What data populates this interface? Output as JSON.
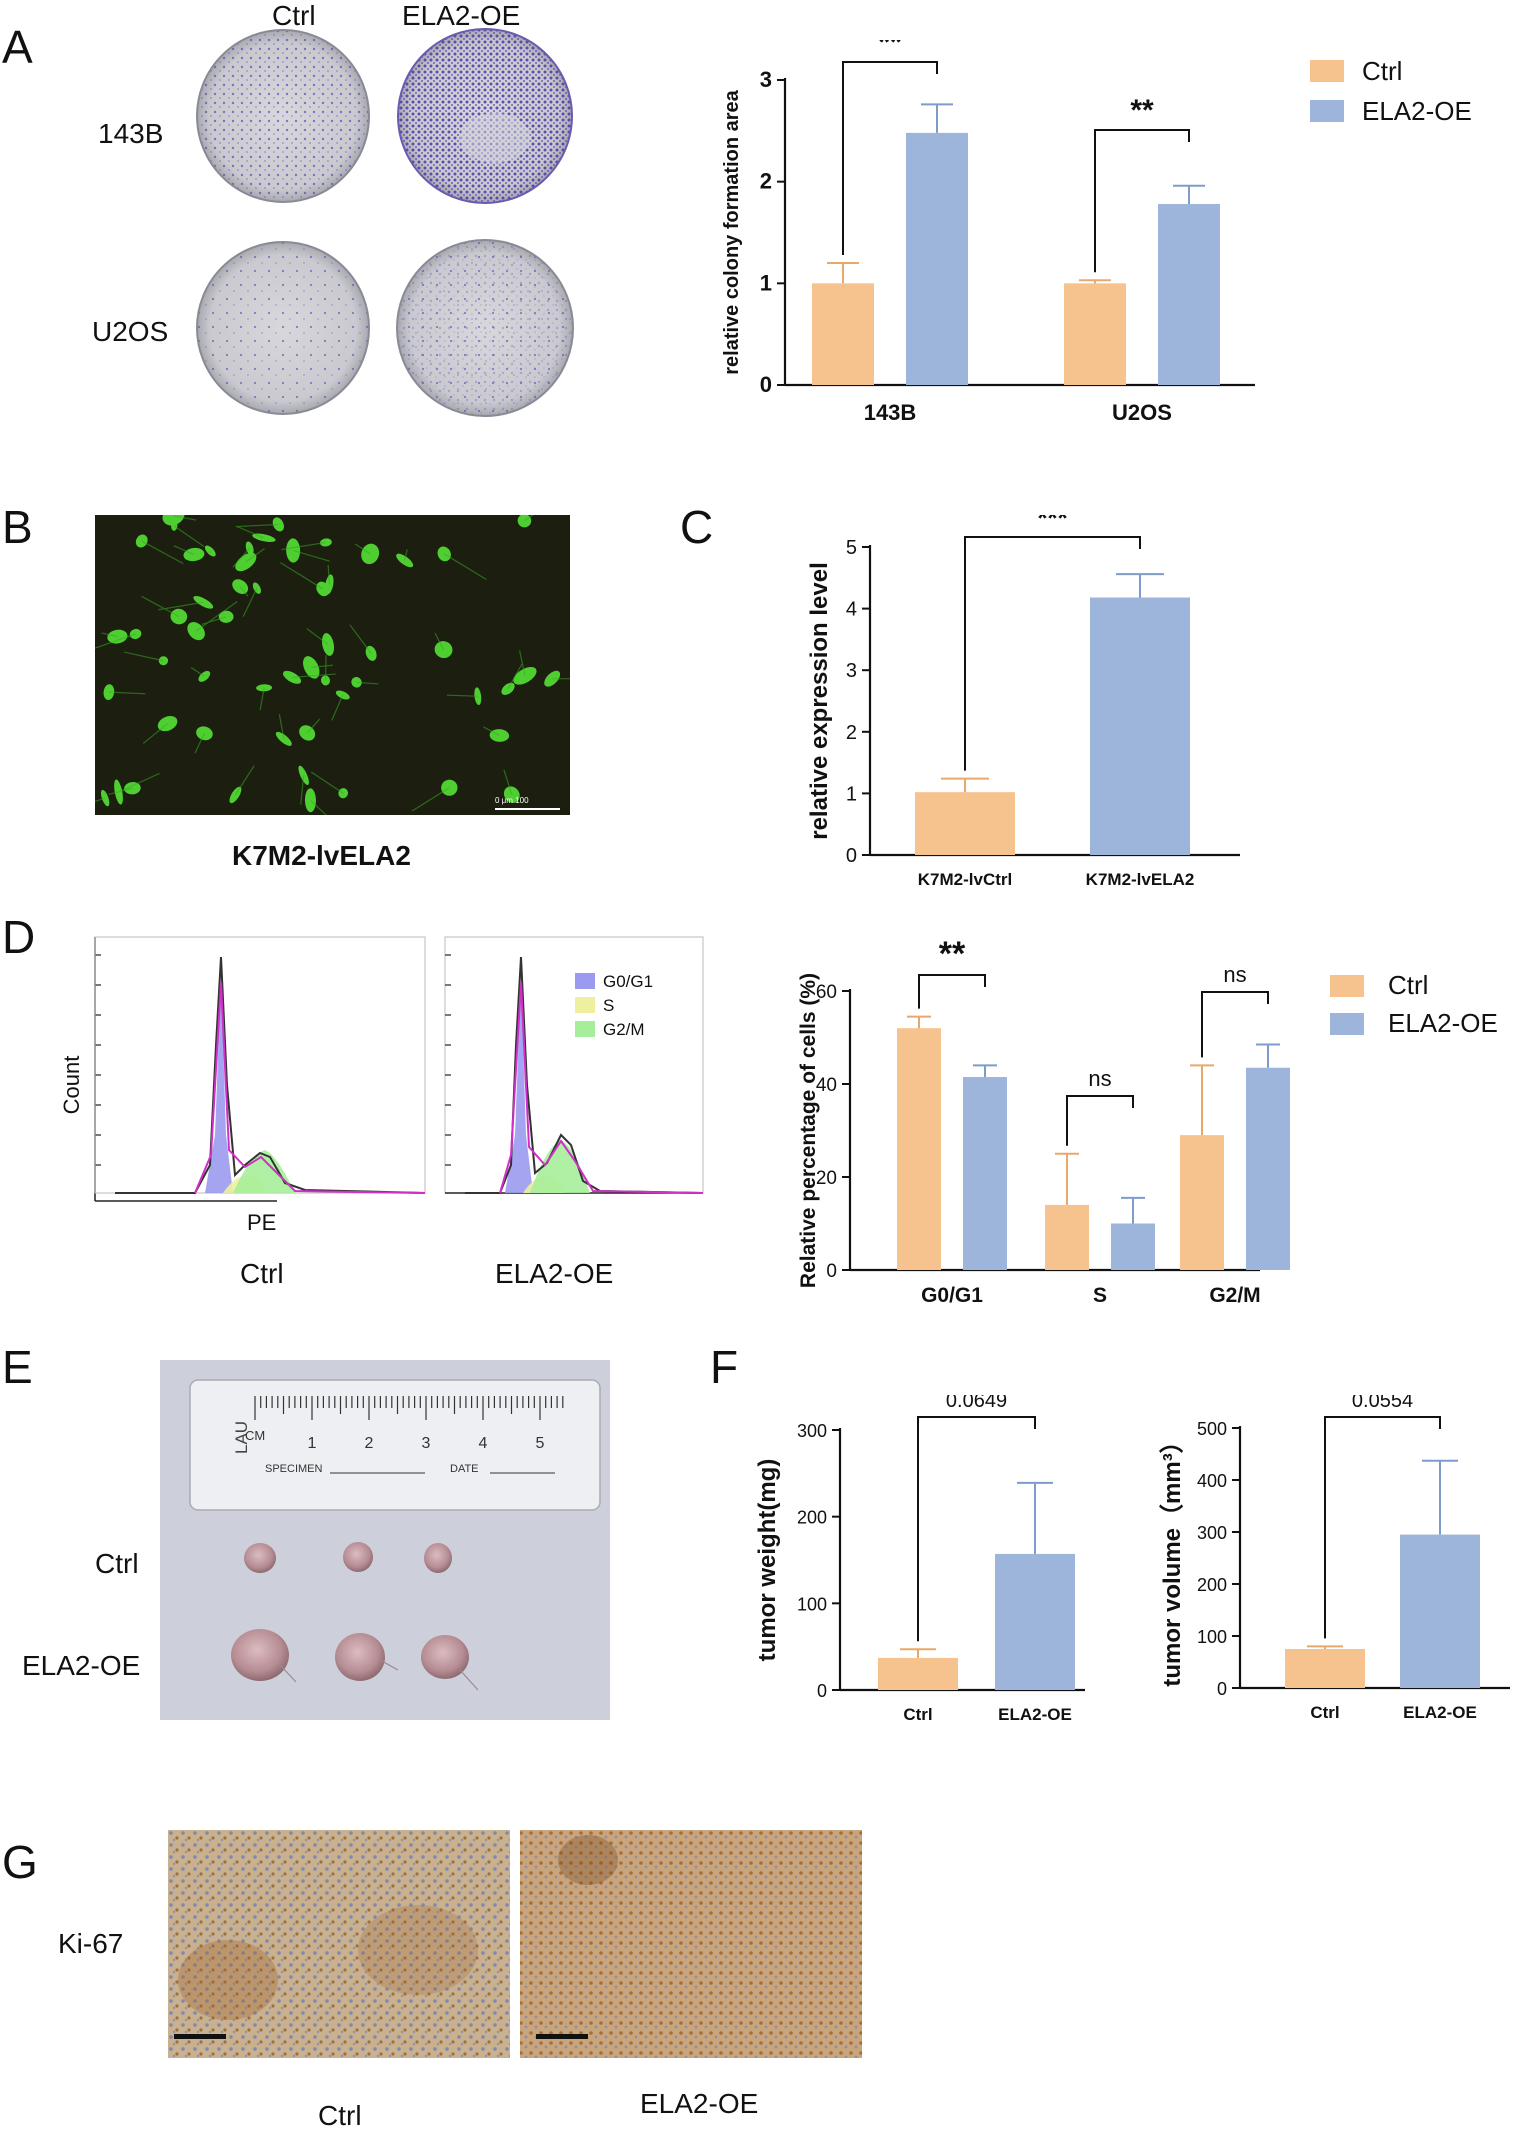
{
  "panels": {
    "A": {
      "label": "A",
      "col_headers": [
        "Ctrl",
        "ELA2-OE"
      ],
      "row_labels": [
        "143B",
        "U2OS"
      ]
    },
    "B": {
      "label": "B",
      "caption": "K7M2-lvELA2",
      "scalebar_text": "0    μm    100"
    },
    "C": {
      "label": "C"
    },
    "D": {
      "label": "D",
      "flow_legend": [
        "G0/G1",
        "S",
        "G2/M"
      ],
      "flow_ylabel": "Count",
      "flow_xlabel": "PE",
      "flow_captions": [
        "Ctrl",
        "ELA2-OE"
      ]
    },
    "E": {
      "label": "E",
      "row_labels": [
        "Ctrl",
        "ELA2-OE"
      ],
      "ruler_numbers": [
        "1",
        "2",
        "3",
        "4",
        "5"
      ],
      "ruler_text": {
        "logo": "LAU",
        "cm": "CM",
        "specimen": "SPECIMEN",
        "date": "DATE"
      }
    },
    "F": {
      "label": "F"
    },
    "G": {
      "label": "G",
      "row_label": "Ki-67",
      "captions": [
        "Ctrl",
        "ELA2-OE"
      ]
    }
  },
  "colors": {
    "ctrl": "#F6C28E",
    "ctrl_edge": "#E8A86A",
    "ela2": "#9DB5DA",
    "ela2_edge": "#7E9BCB",
    "g0g1": "#9A9AF0",
    "s": "#EFEFA0",
    "g2m": "#A6EE9A",
    "crystal_violet": "#5B4BB7",
    "gfp": "#4CE02A",
    "ihc_brown": "#A0652E",
    "ihc_blue": "#6E7FB4"
  },
  "chart_data": [
    {
      "id": "A",
      "type": "bar",
      "categories": [
        "143B",
        "U2OS"
      ],
      "series": [
        {
          "name": "Ctrl",
          "values": [
            1.0,
            1.0
          ],
          "errors": [
            0.2,
            0.03
          ]
        },
        {
          "name": "ELA2-OE",
          "values": [
            2.48,
            1.78
          ],
          "errors": [
            0.28,
            0.18
          ]
        }
      ],
      "ylabel": "relative colony formation area",
      "ylim": [
        0,
        3
      ],
      "yticks": [
        "0",
        "1",
        "2",
        "3"
      ],
      "significance": [
        "**",
        "**"
      ],
      "legend": [
        "Ctrl",
        "ELA2-OE"
      ]
    },
    {
      "id": "C",
      "type": "bar",
      "categories": [
        "K7M2-lvCtrl",
        "K7M2-lvELA2"
      ],
      "values": [
        1.02,
        4.18
      ],
      "errors": [
        0.22,
        0.38
      ],
      "ylabel": "relative expression level",
      "ylim": [
        0,
        5
      ],
      "yticks": [
        "0",
        "1",
        "2",
        "3",
        "4",
        "5"
      ],
      "significance": "***"
    },
    {
      "id": "D",
      "type": "bar",
      "categories": [
        "G0/G1",
        "S",
        "G2/M"
      ],
      "series": [
        {
          "name": "Ctrl",
          "values": [
            52,
            14,
            29
          ],
          "errors": [
            2.5,
            11,
            15
          ]
        },
        {
          "name": "ELA2-OE",
          "values": [
            41.5,
            10,
            43.5
          ],
          "errors": [
            2.5,
            5.5,
            5
          ]
        }
      ],
      "ylabel": "Relative percentage of cells (%)",
      "ylim": [
        0,
        60
      ],
      "yticks": [
        "0",
        "20",
        "40",
        "60"
      ],
      "significance": [
        "**",
        "ns",
        "ns"
      ],
      "legend": [
        "Ctrl",
        "ELA2-OE"
      ]
    },
    {
      "id": "F1",
      "type": "bar",
      "categories": [
        "Ctrl",
        "ELA2-OE"
      ],
      "values": [
        37,
        157
      ],
      "errors": [
        10,
        82
      ],
      "ylabel": "tumor weight(mg)",
      "ylim": [
        0,
        300
      ],
      "yticks": [
        "0",
        "100",
        "200",
        "300"
      ],
      "significance": "0.0649"
    },
    {
      "id": "F2",
      "type": "bar",
      "categories": [
        "Ctrl",
        "ELA2-OE"
      ],
      "values": [
        75,
        295
      ],
      "errors": [
        5,
        142
      ],
      "ylabel": "tumor volume（mm³）",
      "ylim": [
        0,
        500
      ],
      "yticks": [
        "0",
        "100",
        "200",
        "300",
        "400",
        "500"
      ],
      "significance": "0.0554"
    }
  ]
}
